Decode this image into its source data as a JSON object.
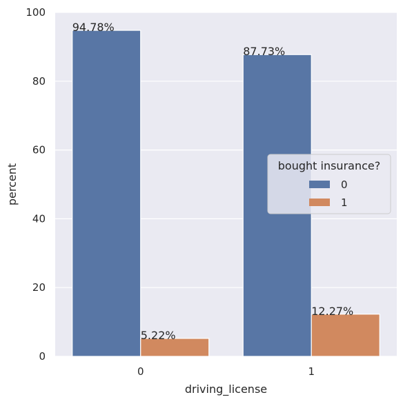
{
  "chart_data": {
    "type": "bar",
    "xlabel": "driving_license",
    "ylabel": "percent",
    "ylim": [
      0,
      100
    ],
    "yticks": [
      0,
      20,
      40,
      60,
      80,
      100
    ],
    "categories": [
      "0",
      "1"
    ],
    "grid": true,
    "legend": {
      "title": "bought insurance?",
      "placement": "center-right"
    },
    "series": [
      {
        "name": "0",
        "color": "#5876a5",
        "values": [
          94.78,
          87.73
        ],
        "labels": [
          "94.78%",
          "87.73%"
        ]
      },
      {
        "name": "1",
        "color": "#d1895f",
        "values": [
          5.22,
          12.27
        ],
        "labels": [
          "5.22%",
          "12.27%"
        ]
      }
    ],
    "colors": {
      "plot_background": "#eaeaf2",
      "grid": "#ffffff"
    }
  }
}
